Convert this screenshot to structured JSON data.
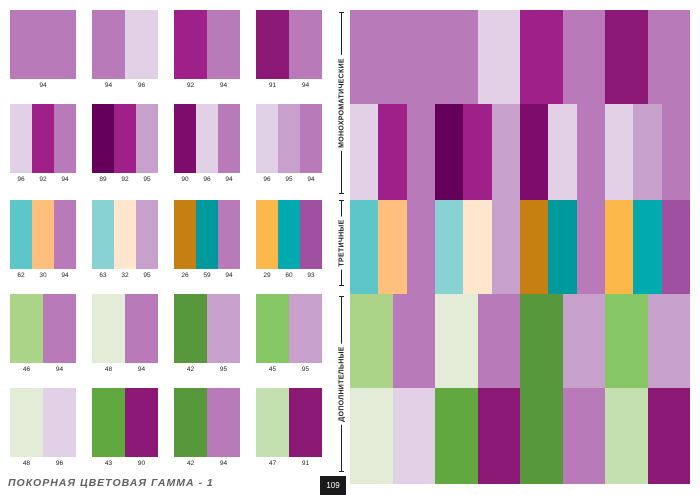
{
  "colors": {
    "p94": "#b87ab8",
    "p96": "#e2d0e6",
    "p92": "#a0208a",
    "p91": "#8a1874",
    "p89": "#64005a",
    "p90": "#7e0c6c",
    "p95": "#c8a0cc",
    "p93": "#a050a0",
    "c62": "#5cc6c8",
    "c63": "#88d2d4",
    "c59": "#00999c",
    "c60": "#00aaae",
    "o30": "#fec07c",
    "o32": "#ffe6cc",
    "o26": "#c68012",
    "o29": "#fdb84c",
    "g46": "#acd488",
    "g48": "#e2ecd6",
    "g42": "#58983c",
    "g45": "#86c664",
    "g43": "#62a840",
    "g47": "#c4e0b0"
  },
  "left_grid": {
    "rows": [
      [
        {
          "colors": [
            "#b87ab8"
          ],
          "labels": [
            "94"
          ]
        },
        {
          "colors": [
            "#b87ab8",
            "#e2d0e6"
          ],
          "labels": [
            "94",
            "96"
          ]
        },
        {
          "colors": [
            "#a0208a",
            "#b87ab8"
          ],
          "labels": [
            "92",
            "94"
          ]
        },
        {
          "colors": [
            "#8a1874",
            "#b87ab8"
          ],
          "labels": [
            "91",
            "94"
          ]
        }
      ],
      [
        {
          "colors": [
            "#e2d0e6",
            "#a0208a",
            "#b87ab8"
          ],
          "labels": [
            "96",
            "92",
            "94"
          ]
        },
        {
          "colors": [
            "#64005a",
            "#a0208a",
            "#c8a0cc"
          ],
          "labels": [
            "89",
            "92",
            "95"
          ]
        },
        {
          "colors": [
            "#7e0c6c",
            "#e2d0e6",
            "#b87ab8"
          ],
          "labels": [
            "90",
            "96",
            "94"
          ]
        },
        {
          "colors": [
            "#e2d0e6",
            "#c8a0cc",
            "#b87ab8"
          ],
          "labels": [
            "96",
            "95",
            "94"
          ]
        }
      ],
      [
        {
          "colors": [
            "#5cc6c8",
            "#fec07c",
            "#b87ab8"
          ],
          "labels": [
            "62",
            "30",
            "94"
          ]
        },
        {
          "colors": [
            "#88d2d4",
            "#ffe6cc",
            "#c8a0cc"
          ],
          "labels": [
            "63",
            "32",
            "95"
          ]
        },
        {
          "colors": [
            "#c68012",
            "#00999c",
            "#b87ab8"
          ],
          "labels": [
            "26",
            "59",
            "94"
          ]
        },
        {
          "colors": [
            "#fdb84c",
            "#00aaae",
            "#a050a0"
          ],
          "labels": [
            "29",
            "60",
            "93"
          ]
        }
      ],
      [
        {
          "colors": [
            "#acd488",
            "#b87ab8"
          ],
          "labels": [
            "46",
            "94"
          ]
        },
        {
          "colors": [
            "#e2ecd6",
            "#b87ab8"
          ],
          "labels": [
            "48",
            "94"
          ]
        },
        {
          "colors": [
            "#58983c",
            "#c8a0cc"
          ],
          "labels": [
            "42",
            "95"
          ]
        },
        {
          "colors": [
            "#86c664",
            "#c8a0cc"
          ],
          "labels": [
            "45",
            "95"
          ]
        }
      ],
      [
        {
          "colors": [
            "#e2ecd6",
            "#e2d0e6"
          ],
          "labels": [
            "48",
            "96"
          ]
        },
        {
          "colors": [
            "#62a840",
            "#8a1874"
          ],
          "labels": [
            "43",
            "90"
          ]
        },
        {
          "colors": [
            "#58983c",
            "#b87ab8"
          ],
          "labels": [
            "42",
            "94"
          ]
        },
        {
          "colors": [
            "#c4e0b0",
            "#8a1874"
          ],
          "labels": [
            "47",
            "91"
          ]
        }
      ]
    ]
  },
  "right_grid": {
    "rows": [
      [
        "#b87ab8",
        "#b87ab8",
        "#b87ab8",
        "#e2d0e6",
        "#a0208a",
        "#b87ab8",
        "#8a1874",
        "#b87ab8"
      ],
      [
        "#e2d0e6",
        "#a0208a",
        "#b87ab8",
        "#64005a",
        "#a0208a",
        "#c8a0cc",
        "#7e0c6c",
        "#e2d0e6",
        "#b87ab8",
        "#e2d0e6",
        "#c8a0cc",
        "#b87ab8"
      ],
      [
        "#5cc6c8",
        "#fec07c",
        "#b87ab8",
        "#88d2d4",
        "#ffe6cc",
        "#c8a0cc",
        "#c68012",
        "#00999c",
        "#b87ab8",
        "#fdb84c",
        "#00aaae",
        "#a050a0"
      ],
      [
        "#acd488",
        "#b87ab8",
        "#e2ecd6",
        "#b87ab8",
        "#58983c",
        "#c8a0cc",
        "#86c664",
        "#c8a0cc"
      ],
      [
        "#e2ecd6",
        "#e2d0e6",
        "#62a840",
        "#8a1874",
        "#58983c",
        "#b87ab8",
        "#c4e0b0",
        "#8a1874"
      ]
    ]
  },
  "sections": [
    {
      "label": "МОНОХРОМАТИЧЕСКИЕ"
    },
    {
      "label": "ТРЕТИЧНЫЕ"
    },
    {
      "label": "ДОПОЛНИТЕЛЬНЫЕ"
    }
  ],
  "footer": {
    "title": "ПОКОРНАЯ ЦВЕТОВАЯ ГАММА - 1",
    "page_number": "109"
  }
}
